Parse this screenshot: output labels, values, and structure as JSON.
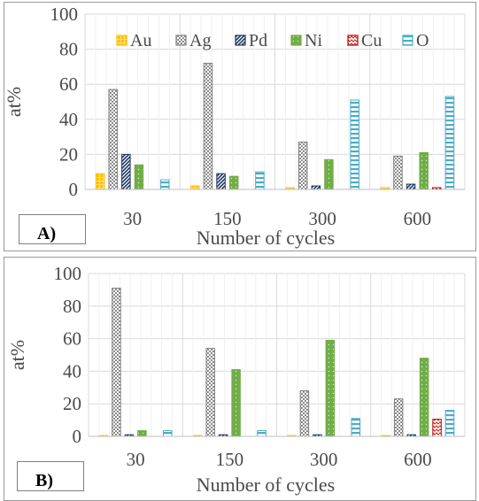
{
  "chart_data": [
    {
      "type": "bar",
      "panel_label": "A)",
      "categories": [
        "30",
        "150",
        "300",
        "600"
      ],
      "xlabel": "Number of cycles",
      "ylabel": "at%",
      "ylim": [
        0,
        100
      ],
      "yticks": [
        0,
        20,
        40,
        60,
        80,
        100
      ],
      "grid": true,
      "legend": "top",
      "series": [
        {
          "name": "Au",
          "values": [
            9,
            2,
            1,
            1
          ]
        },
        {
          "name": "Ag",
          "values": [
            57,
            72,
            27,
            19
          ]
        },
        {
          "name": "Pd",
          "values": [
            20,
            9,
            2,
            3
          ]
        },
        {
          "name": "Ni",
          "values": [
            14,
            7.5,
            17,
            21
          ]
        },
        {
          "name": "Cu",
          "values": [
            0,
            0,
            0,
            1
          ]
        },
        {
          "name": "O",
          "values": [
            5.5,
            10,
            51,
            53
          ]
        }
      ]
    },
    {
      "type": "bar",
      "panel_label": "B)",
      "categories": [
        "30",
        "150",
        "300",
        "600"
      ],
      "xlabel": "Number of cycles",
      "ylabel": "at%",
      "ylim": [
        0,
        100
      ],
      "yticks": [
        0,
        20,
        40,
        60,
        80,
        100
      ],
      "grid": true,
      "legend": "none",
      "series": [
        {
          "name": "Au",
          "values": [
            0.5,
            0.5,
            0.5,
            0.5
          ]
        },
        {
          "name": "Ag",
          "values": [
            91,
            54,
            28,
            23
          ]
        },
        {
          "name": "Pd",
          "values": [
            1,
            1,
            1,
            1
          ]
        },
        {
          "name": "Ni",
          "values": [
            3.5,
            41,
            59,
            48
          ]
        },
        {
          "name": "Cu",
          "values": [
            0,
            0,
            0,
            10.5
          ]
        },
        {
          "name": "O",
          "values": [
            3.5,
            3.5,
            11,
            16
          ]
        }
      ]
    }
  ],
  "series_style": [
    {
      "color": "#ffc000",
      "pattern": "grid"
    },
    {
      "color": "#7f7f7f",
      "pattern": "checker"
    },
    {
      "color": "#203864",
      "pattern": "diag"
    },
    {
      "color": "#70ad47",
      "pattern": "dots"
    },
    {
      "color": "#c00000",
      "pattern": "wave"
    },
    {
      "color": "#4bacc6",
      "pattern": "hlines"
    }
  ]
}
